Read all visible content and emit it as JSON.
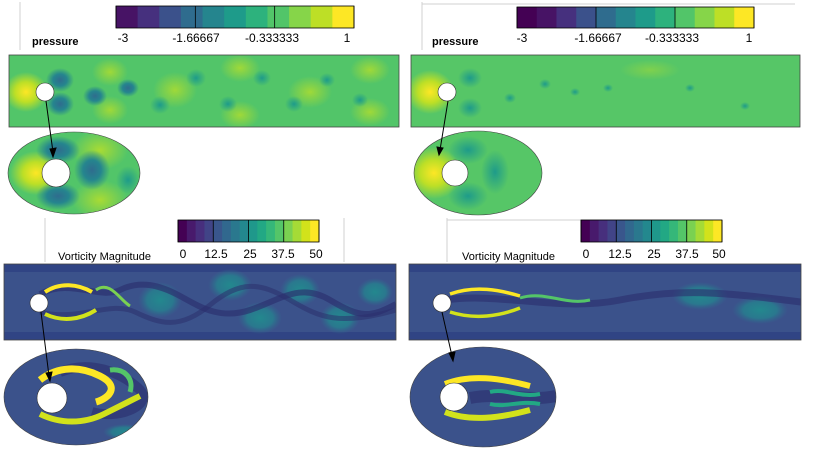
{
  "panels": [
    {
      "id": "pressure-left",
      "legend_title": "pressure",
      "ticks": [
        "-3",
        "-1.66667",
        "-0.333333",
        "1"
      ],
      "colors": [
        "#471365",
        "#46307e",
        "#3b518b",
        "#2f6c8e",
        "#25858e",
        "#1e9b8a",
        "#2db27d",
        "#52c569",
        "#86d549",
        "#bddf26",
        "#fde725"
      ]
    },
    {
      "id": "pressure-right",
      "legend_title": "pressure",
      "ticks": [
        "-3",
        "-1.66667",
        "-0.333333",
        "1"
      ],
      "colors": [
        "#440154",
        "#471365",
        "#46307e",
        "#3b518b",
        "#2f6c8e",
        "#25858e",
        "#1e9b8a",
        "#2db27d",
        "#52c569",
        "#86d549",
        "#bddf26",
        "#fde725"
      ]
    },
    {
      "id": "vorticity-left",
      "legend_title": "Vorticity Magnitude",
      "ticks": [
        "0",
        "12.5",
        "25",
        "37.5",
        "50"
      ],
      "colors": [
        "#440154",
        "#481a6c",
        "#472f7d",
        "#414487",
        "#39568c",
        "#31688e",
        "#2a788e",
        "#23888e",
        "#1f988b",
        "#22a884",
        "#35b779",
        "#54c568",
        "#7ad151",
        "#a5db36",
        "#d2e21b",
        "#fde725"
      ]
    },
    {
      "id": "vorticity-right",
      "legend_title": "Vorticity Magnitude",
      "ticks": [
        "0",
        "12.5",
        "25",
        "37.5",
        "50"
      ],
      "colors": [
        "#440154",
        "#481a6c",
        "#472f7d",
        "#414487",
        "#39568c",
        "#31688e",
        "#2a788e",
        "#23888e",
        "#1f988b",
        "#22a884",
        "#35b779",
        "#54c568",
        "#7ad151",
        "#a5db36",
        "#d2e21b",
        "#fde725"
      ]
    }
  ]
}
